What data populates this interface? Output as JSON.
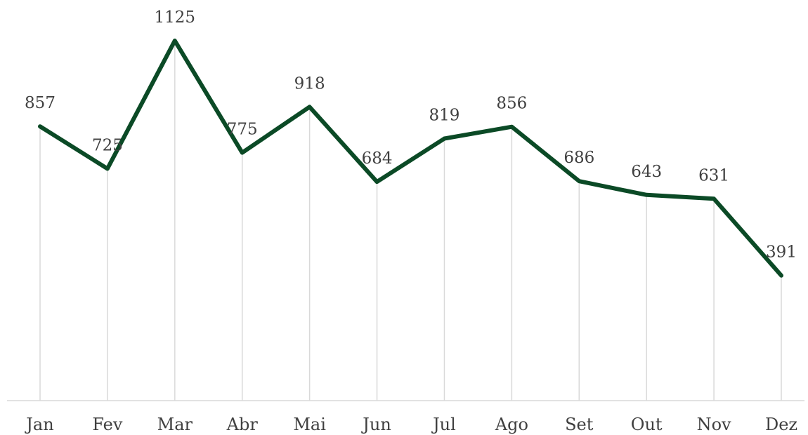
{
  "chart_data": {
    "type": "line",
    "categories": [
      "Jan",
      "Fev",
      "Mar",
      "Abr",
      "Mai",
      "Jun",
      "Jul",
      "Ago",
      "Set",
      "Out",
      "Nov",
      "Dez"
    ],
    "series": [
      {
        "values": [
          857,
          725,
          1125,
          775,
          918,
          684,
          819,
          856,
          686,
          643,
          631,
          391
        ],
        "color": "#0b4a26"
      }
    ],
    "title": "",
    "xlabel": "",
    "ylabel": "",
    "ylim": [
      0,
      1125
    ],
    "grid": false,
    "drop_lines": true,
    "data_labels": true,
    "legend": "none"
  }
}
